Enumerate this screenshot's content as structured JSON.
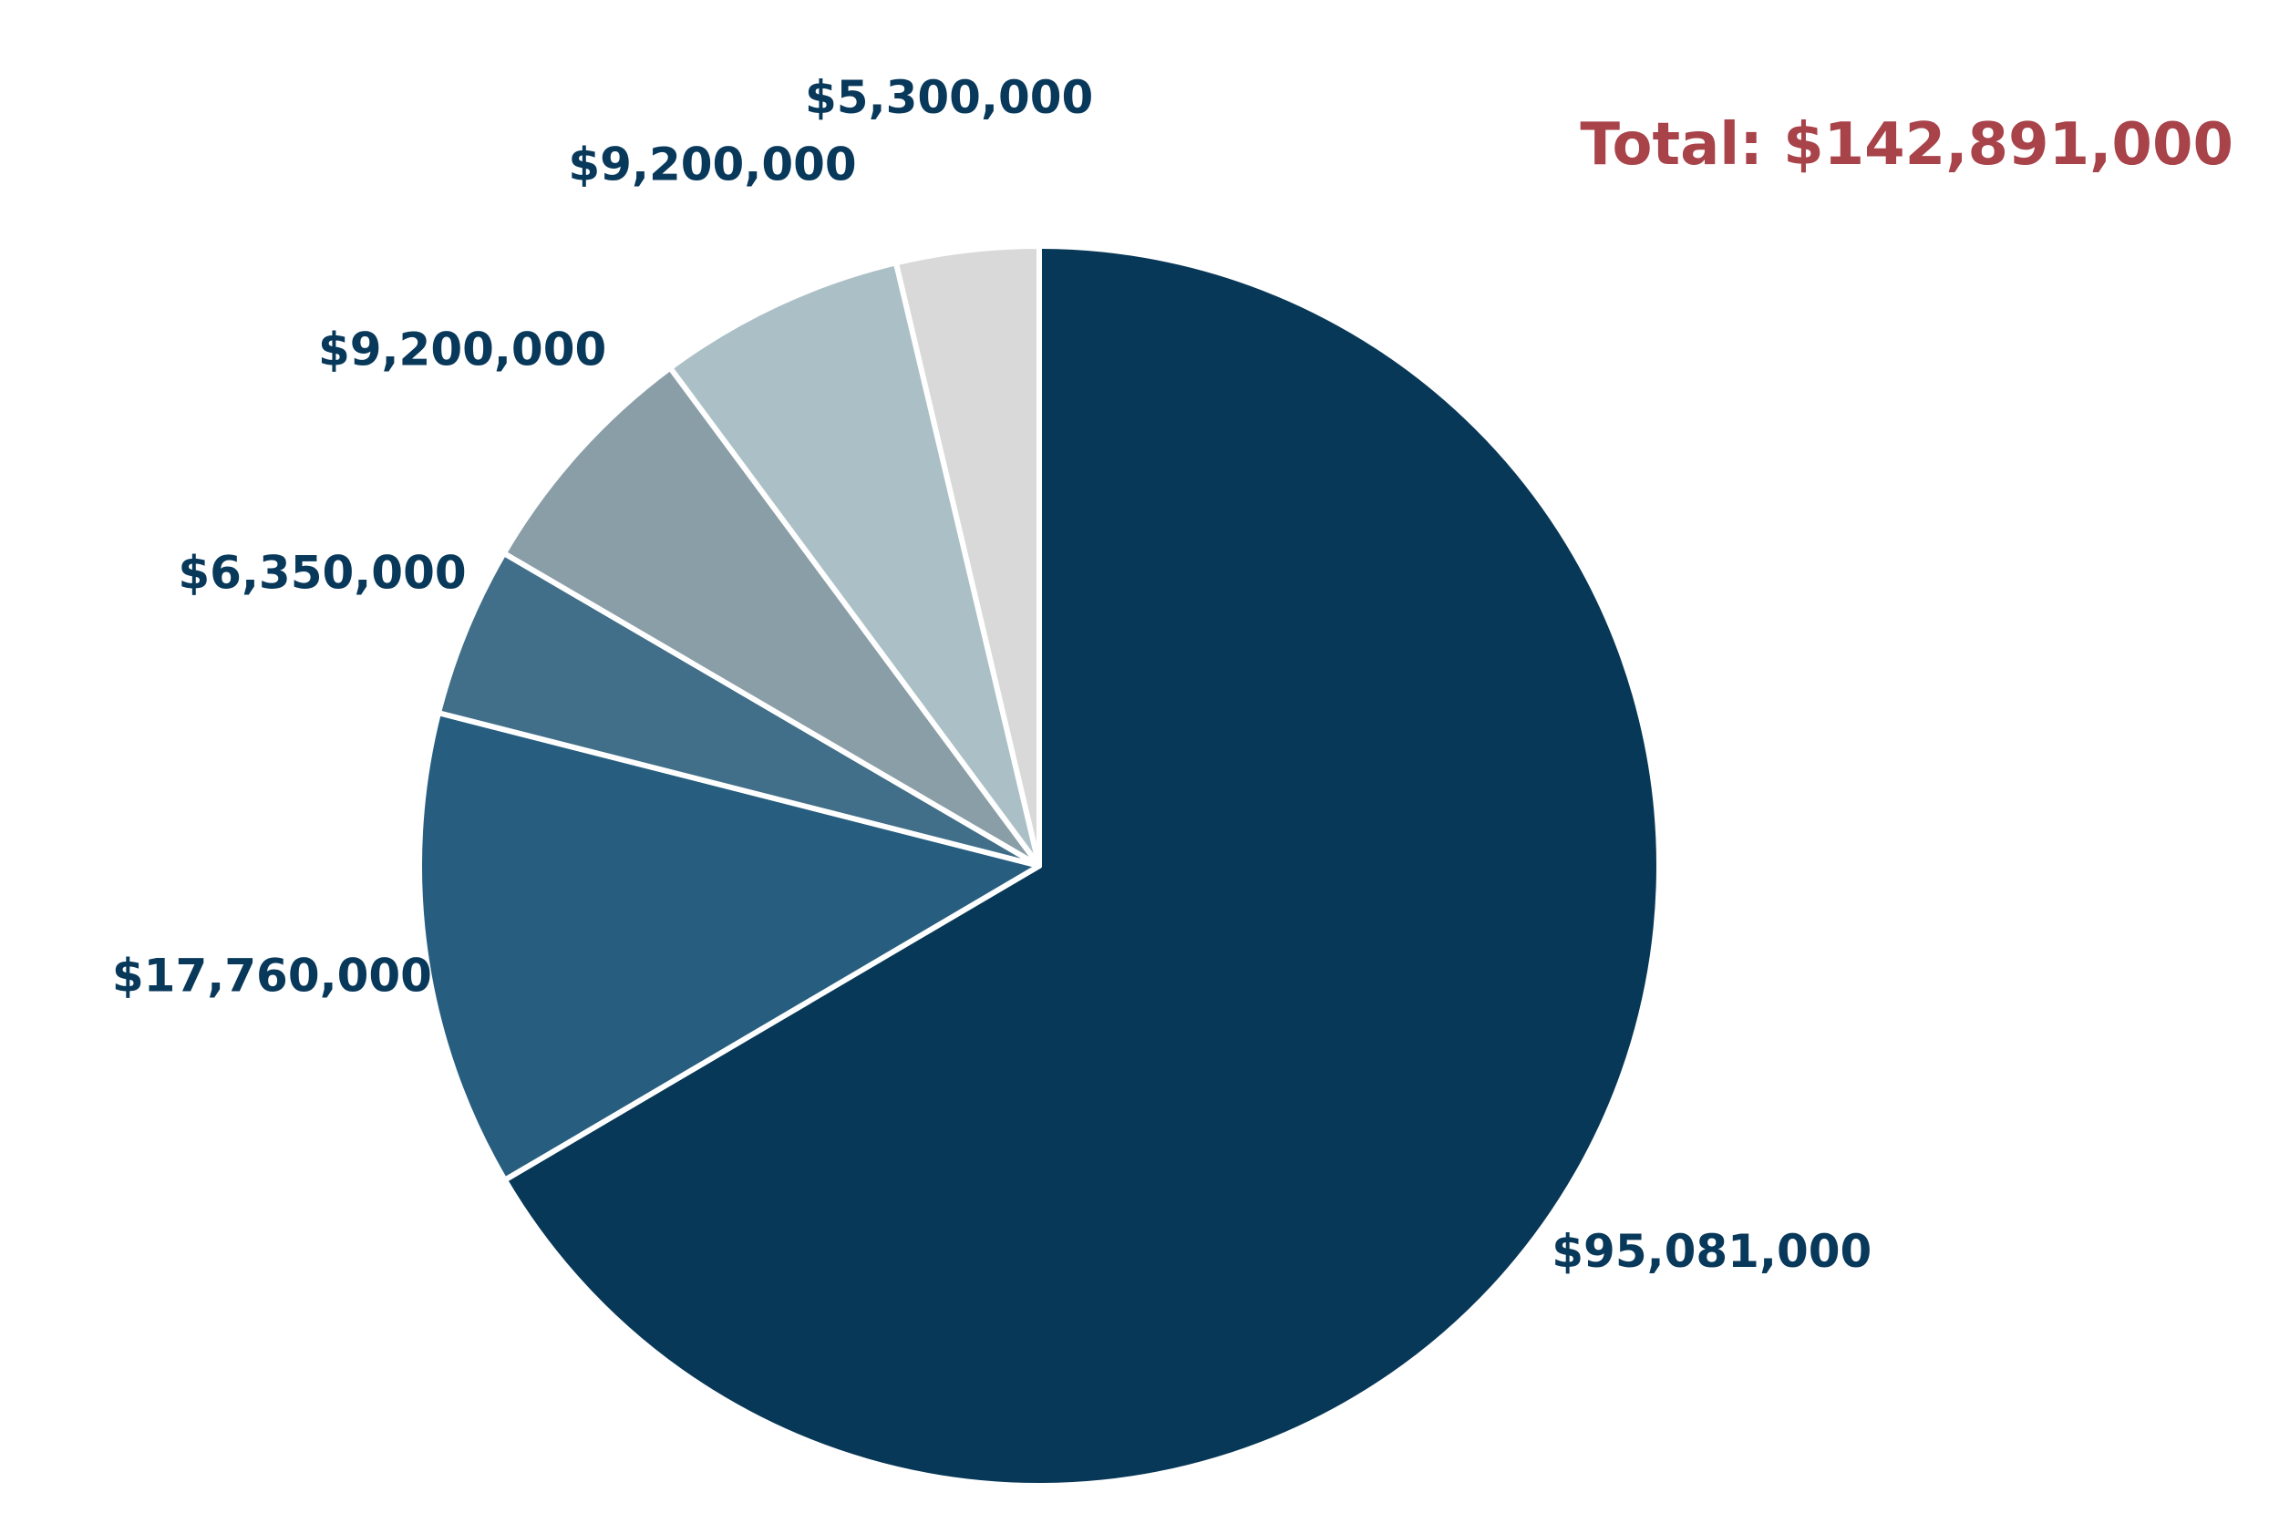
{
  "chart_data": {
    "type": "pie",
    "total_label": "Total: $142,891,000",
    "start": "12 o'clock",
    "direction": "clockwise",
    "slice_border_color": "#ffffff",
    "slices": [
      {
        "value": 95081000,
        "label": "$95,081,000",
        "color": "#083857"
      },
      {
        "value": 17760000,
        "label": "$17,760,000",
        "color": "#275e80"
      },
      {
        "value": 6350000,
        "label": "$6,350,000",
        "color": "#416e88"
      },
      {
        "value": 9200000,
        "label": "$9,200,000",
        "color": "#8a9ea7"
      },
      {
        "value": 9200000,
        "label": "$9,200,000",
        "color": "#abc0c6"
      },
      {
        "value": 5300000,
        "label": "$5,300,000",
        "color": "#d9d9d9"
      }
    ]
  }
}
